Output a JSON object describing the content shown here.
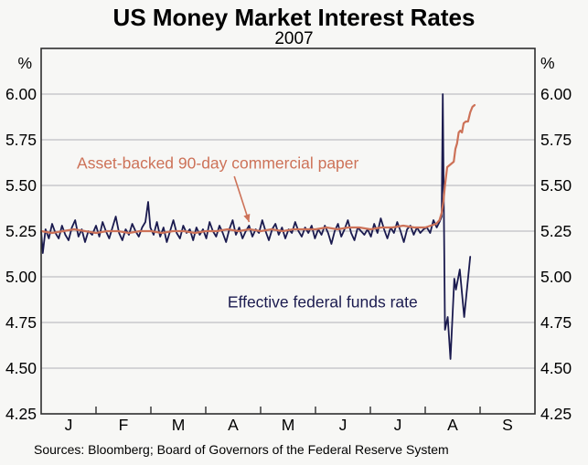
{
  "header": {
    "title": "US Money Market Interest Rates",
    "subtitle": "2007"
  },
  "footer": {
    "sources": "Sources: Bloomberg; Board of Governors of the Federal Reserve System"
  },
  "chart_data": {
    "type": "line",
    "title": "US Money Market Interest Rates",
    "subtitle": "2007",
    "unit_label": "%",
    "ylim": [
      4.25,
      6.25
    ],
    "yticks": [
      6.0,
      5.75,
      5.5,
      5.25,
      5.0,
      4.75,
      4.5,
      4.25
    ],
    "x_months": [
      "J",
      "F",
      "M",
      "A",
      "M",
      "J",
      "J",
      "A",
      "S"
    ],
    "xlim_months": [
      0,
      9
    ],
    "grid": true,
    "legend_position": "inline-annotations",
    "colors": {
      "grid": "#bfbfc4",
      "frame": "#2e2e2e",
      "text": "#000000"
    },
    "series": [
      {
        "name": "Effective federal funds rate",
        "color": "#1b1b4f",
        "width": 1.8,
        "points": [
          [
            0.0,
            5.25
          ],
          [
            0.03,
            5.13
          ],
          [
            0.08,
            5.26
          ],
          [
            0.14,
            5.21
          ],
          [
            0.2,
            5.29
          ],
          [
            0.26,
            5.24
          ],
          [
            0.32,
            5.21
          ],
          [
            0.38,
            5.28
          ],
          [
            0.44,
            5.23
          ],
          [
            0.5,
            5.2
          ],
          [
            0.56,
            5.27
          ],
          [
            0.62,
            5.31
          ],
          [
            0.68,
            5.22
          ],
          [
            0.74,
            5.26
          ],
          [
            0.8,
            5.19
          ],
          [
            0.86,
            5.25
          ],
          [
            0.93,
            5.23
          ],
          [
            1.0,
            5.28
          ],
          [
            1.06,
            5.22
          ],
          [
            1.12,
            5.3
          ],
          [
            1.18,
            5.25
          ],
          [
            1.24,
            5.21
          ],
          [
            1.3,
            5.27
          ],
          [
            1.36,
            5.33
          ],
          [
            1.42,
            5.24
          ],
          [
            1.48,
            5.2
          ],
          [
            1.54,
            5.26
          ],
          [
            1.6,
            5.23
          ],
          [
            1.66,
            5.29
          ],
          [
            1.72,
            5.25
          ],
          [
            1.78,
            5.22
          ],
          [
            1.84,
            5.27
          ],
          [
            1.9,
            5.3
          ],
          [
            1.95,
            5.41
          ],
          [
            1.99,
            5.27
          ],
          [
            2.05,
            5.23
          ],
          [
            2.11,
            5.3
          ],
          [
            2.17,
            5.22
          ],
          [
            2.23,
            5.27
          ],
          [
            2.29,
            5.19
          ],
          [
            2.35,
            5.25
          ],
          [
            2.41,
            5.31
          ],
          [
            2.47,
            5.24
          ],
          [
            2.53,
            5.21
          ],
          [
            2.59,
            5.28
          ],
          [
            2.65,
            5.24
          ],
          [
            2.71,
            5.26
          ],
          [
            2.77,
            5.2
          ],
          [
            2.83,
            5.27
          ],
          [
            2.89,
            5.23
          ],
          [
            2.95,
            5.26
          ],
          [
            3.01,
            5.21
          ],
          [
            3.07,
            5.3
          ],
          [
            3.13,
            5.25
          ],
          [
            3.19,
            5.22
          ],
          [
            3.25,
            5.28
          ],
          [
            3.31,
            5.24
          ],
          [
            3.37,
            5.19
          ],
          [
            3.43,
            5.26
          ],
          [
            3.49,
            5.31
          ],
          [
            3.55,
            5.23
          ],
          [
            3.61,
            5.27
          ],
          [
            3.67,
            5.21
          ],
          [
            3.73,
            5.25
          ],
          [
            3.79,
            5.28
          ],
          [
            3.85,
            5.22
          ],
          [
            3.91,
            5.26
          ],
          [
            3.97,
            5.24
          ],
          [
            4.03,
            5.31
          ],
          [
            4.09,
            5.25
          ],
          [
            4.15,
            5.2
          ],
          [
            4.21,
            5.26
          ],
          [
            4.27,
            5.29
          ],
          [
            4.33,
            5.23
          ],
          [
            4.39,
            5.27
          ],
          [
            4.45,
            5.21
          ],
          [
            4.51,
            5.26
          ],
          [
            4.57,
            5.24
          ],
          [
            4.63,
            5.3
          ],
          [
            4.69,
            5.25
          ],
          [
            4.75,
            5.22
          ],
          [
            4.81,
            5.27
          ],
          [
            4.87,
            5.24
          ],
          [
            4.93,
            5.28
          ],
          [
            4.99,
            5.21
          ],
          [
            5.05,
            5.26
          ],
          [
            5.11,
            5.23
          ],
          [
            5.17,
            5.28
          ],
          [
            5.23,
            5.24
          ],
          [
            5.29,
            5.18
          ],
          [
            5.35,
            5.25
          ],
          [
            5.41,
            5.29
          ],
          [
            5.47,
            5.22
          ],
          [
            5.53,
            5.26
          ],
          [
            5.59,
            5.31
          ],
          [
            5.65,
            5.24
          ],
          [
            5.71,
            5.2
          ],
          [
            5.77,
            5.27
          ],
          [
            5.83,
            5.25
          ],
          [
            5.89,
            5.23
          ],
          [
            5.95,
            5.26
          ],
          [
            6.01,
            5.22
          ],
          [
            6.07,
            5.29
          ],
          [
            6.13,
            5.24
          ],
          [
            6.19,
            5.32
          ],
          [
            6.25,
            5.26
          ],
          [
            6.31,
            5.21
          ],
          [
            6.37,
            5.27
          ],
          [
            6.43,
            5.24
          ],
          [
            6.49,
            5.3
          ],
          [
            6.55,
            5.25
          ],
          [
            6.61,
            5.19
          ],
          [
            6.67,
            5.26
          ],
          [
            6.73,
            5.28
          ],
          [
            6.79,
            5.23
          ],
          [
            6.85,
            5.27
          ],
          [
            6.91,
            5.24
          ],
          [
            6.97,
            5.26
          ],
          [
            7.03,
            5.27
          ],
          [
            7.09,
            5.24
          ],
          [
            7.15,
            5.31
          ],
          [
            7.21,
            5.27
          ],
          [
            7.26,
            5.3
          ],
          [
            7.3,
            5.33
          ],
          [
            7.32,
            6.0
          ],
          [
            7.36,
            4.71
          ],
          [
            7.41,
            4.78
          ],
          [
            7.46,
            4.55
          ],
          [
            7.53,
            4.99
          ],
          [
            7.56,
            4.93
          ],
          [
            7.63,
            5.04
          ],
          [
            7.71,
            4.78
          ],
          [
            7.82,
            5.11
          ]
        ]
      },
      {
        "name": "Asset-backed 90-day commercial paper",
        "color": "#cd7258",
        "width": 2.2,
        "points": [
          [
            0.0,
            5.25
          ],
          [
            0.2,
            5.24
          ],
          [
            0.4,
            5.25
          ],
          [
            0.6,
            5.26
          ],
          [
            0.8,
            5.25
          ],
          [
            1.0,
            5.24
          ],
          [
            1.2,
            5.25
          ],
          [
            1.4,
            5.25
          ],
          [
            1.6,
            5.24
          ],
          [
            1.8,
            5.25
          ],
          [
            2.0,
            5.25
          ],
          [
            2.2,
            5.24
          ],
          [
            2.4,
            5.25
          ],
          [
            2.6,
            5.25
          ],
          [
            2.8,
            5.24
          ],
          [
            3.0,
            5.25
          ],
          [
            3.2,
            5.25
          ],
          [
            3.4,
            5.26
          ],
          [
            3.6,
            5.25
          ],
          [
            3.8,
            5.26
          ],
          [
            4.0,
            5.25
          ],
          [
            4.2,
            5.26
          ],
          [
            4.4,
            5.25
          ],
          [
            4.6,
            5.26
          ],
          [
            4.8,
            5.26
          ],
          [
            5.0,
            5.26
          ],
          [
            5.2,
            5.27
          ],
          [
            5.4,
            5.26
          ],
          [
            5.6,
            5.27
          ],
          [
            5.8,
            5.27
          ],
          [
            6.0,
            5.26
          ],
          [
            6.2,
            5.27
          ],
          [
            6.4,
            5.27
          ],
          [
            6.6,
            5.28
          ],
          [
            6.8,
            5.27
          ],
          [
            7.0,
            5.27
          ],
          [
            7.1,
            5.28
          ],
          [
            7.2,
            5.29
          ],
          [
            7.26,
            5.31
          ],
          [
            7.3,
            5.35
          ],
          [
            7.33,
            5.41
          ],
          [
            7.36,
            5.5
          ],
          [
            7.4,
            5.6
          ],
          [
            7.44,
            5.61
          ],
          [
            7.48,
            5.62
          ],
          [
            7.52,
            5.63
          ],
          [
            7.55,
            5.7
          ],
          [
            7.58,
            5.73
          ],
          [
            7.61,
            5.79
          ],
          [
            7.64,
            5.8
          ],
          [
            7.67,
            5.79
          ],
          [
            7.7,
            5.84
          ],
          [
            7.74,
            5.85
          ],
          [
            7.78,
            5.85
          ],
          [
            7.82,
            5.9
          ],
          [
            7.86,
            5.93
          ],
          [
            7.9,
            5.94
          ]
        ]
      }
    ],
    "annotations": [
      {
        "text": "Asset-backed 90-day commercial paper",
        "color": "#cd7258",
        "anchor": [
          3.22,
          5.62
        ],
        "arrow": {
          "from": [
            3.52,
            5.55
          ],
          "to": [
            3.79,
            5.3
          ]
        }
      },
      {
        "text": "Effective federal funds rate",
        "color": "#1b1b4f",
        "anchor": [
          5.13,
          4.86
        ]
      }
    ]
  }
}
